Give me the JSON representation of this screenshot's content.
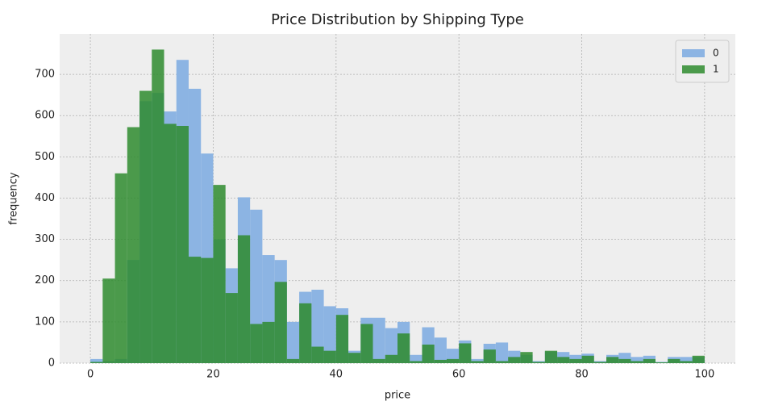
{
  "chart_data": {
    "type": "histogram",
    "title": "Price Distribution by Shipping Type",
    "x_label": "price",
    "y_label": "frequency",
    "bins": [
      0,
      2,
      4,
      6,
      8,
      10,
      12,
      14,
      16,
      18,
      20,
      22,
      24,
      26,
      28,
      30,
      32,
      34,
      36,
      38,
      40,
      42,
      44,
      46,
      48,
      50,
      52,
      54,
      56,
      58,
      60,
      62,
      64,
      66,
      68,
      70,
      72,
      74,
      76,
      78,
      80,
      82,
      84,
      86,
      88,
      90,
      92,
      94,
      96,
      98,
      100
    ],
    "series": [
      {
        "name": "0",
        "color": "#8cb4e3",
        "values": [
          10,
          5,
          10,
          250,
          635,
          655,
          610,
          735,
          665,
          508,
          300,
          230,
          402,
          372,
          262,
          250,
          100,
          173,
          178,
          138,
          133,
          30,
          110,
          110,
          85,
          100,
          20,
          87,
          62,
          35,
          55,
          10,
          47,
          50,
          30,
          20,
          5,
          28,
          27,
          20,
          23,
          5,
          20,
          25,
          15,
          18,
          3,
          15,
          15,
          15
        ]
      },
      {
        "name": "1",
        "color": "#2e8b2e",
        "values": [
          3,
          205,
          460,
          572,
          660,
          760,
          580,
          575,
          258,
          255,
          432,
          170,
          310,
          95,
          100,
          197,
          10,
          145,
          40,
          30,
          117,
          25,
          95,
          10,
          20,
          72,
          5,
          45,
          8,
          10,
          48,
          5,
          33,
          5,
          15,
          27,
          3,
          30,
          15,
          10,
          18,
          3,
          15,
          10,
          5,
          10,
          2,
          10,
          5,
          18
        ]
      }
    ],
    "xlim": [
      -5,
      105
    ],
    "ylim": [
      0,
      798
    ],
    "xticks": [
      0,
      20,
      40,
      60,
      80,
      100
    ],
    "yticks": [
      0,
      100,
      200,
      300,
      400,
      500,
      600,
      700
    ],
    "grid": true,
    "legend": "upper right"
  }
}
